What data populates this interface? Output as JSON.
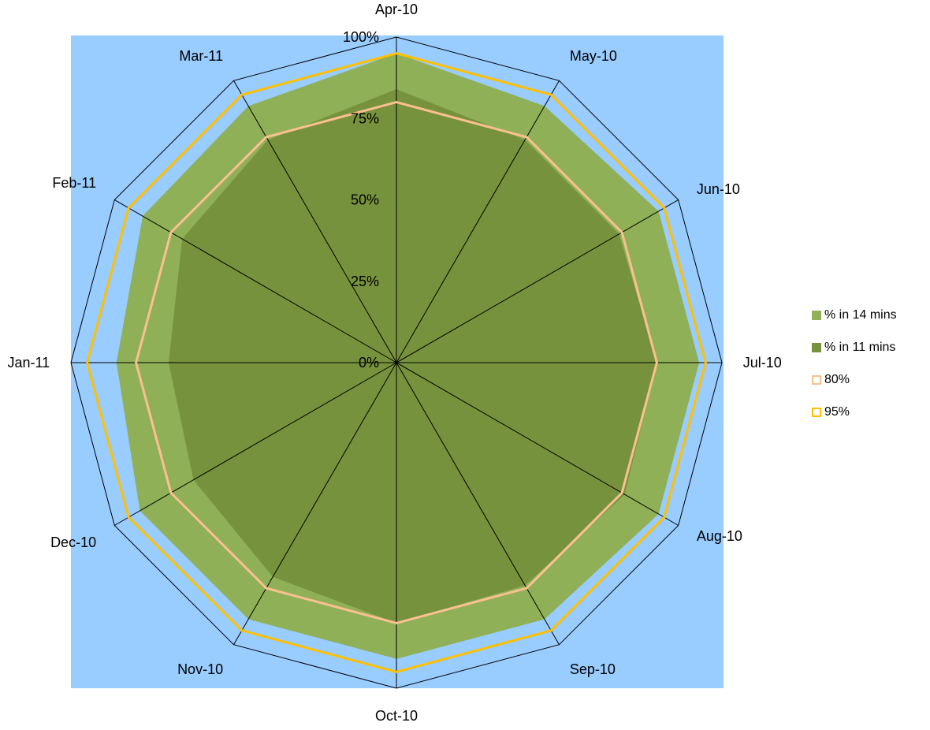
{
  "chart_data": {
    "type": "radar",
    "categories": [
      "Apr-10",
      "May-10",
      "Jun-10",
      "Jul-10",
      "Aug-10",
      "Sep-10",
      "Oct-10",
      "Nov-10",
      "Dec-10",
      "Jan-11",
      "Feb-11",
      "Mar-11"
    ],
    "series": [
      {
        "name": "% in 14 mins",
        "kind": "filled",
        "color": "#8fb056",
        "values": [
          0.95,
          0.91,
          0.93,
          0.93,
          0.93,
          0.91,
          0.91,
          0.91,
          0.91,
          0.86,
          0.9,
          0.91
        ]
      },
      {
        "name": "% in 11 mins",
        "kind": "filled",
        "color": "#77923c",
        "values": [
          0.84,
          0.79,
          0.79,
          0.8,
          0.81,
          0.79,
          0.8,
          0.76,
          0.72,
          0.7,
          0.76,
          0.79
        ]
      },
      {
        "name": "80%",
        "kind": "line",
        "color": "#fac090",
        "values": [
          0.8,
          0.8,
          0.8,
          0.8,
          0.8,
          0.8,
          0.8,
          0.8,
          0.8,
          0.8,
          0.8,
          0.8
        ]
      },
      {
        "name": "95%",
        "kind": "line",
        "color": "#ffc000",
        "values": [
          0.95,
          0.95,
          0.95,
          0.95,
          0.95,
          0.95,
          0.95,
          0.95,
          0.95,
          0.95,
          0.95,
          0.95
        ]
      }
    ],
    "radial_ticks": [
      "0%",
      "25%",
      "50%",
      "75%",
      "100%"
    ],
    "radial_tick_values": [
      0,
      0.25,
      0.5,
      0.75,
      1.0
    ],
    "ylim": [
      0,
      1
    ],
    "plot_background": "#99ccff",
    "grid": true,
    "legend_position": "right"
  }
}
